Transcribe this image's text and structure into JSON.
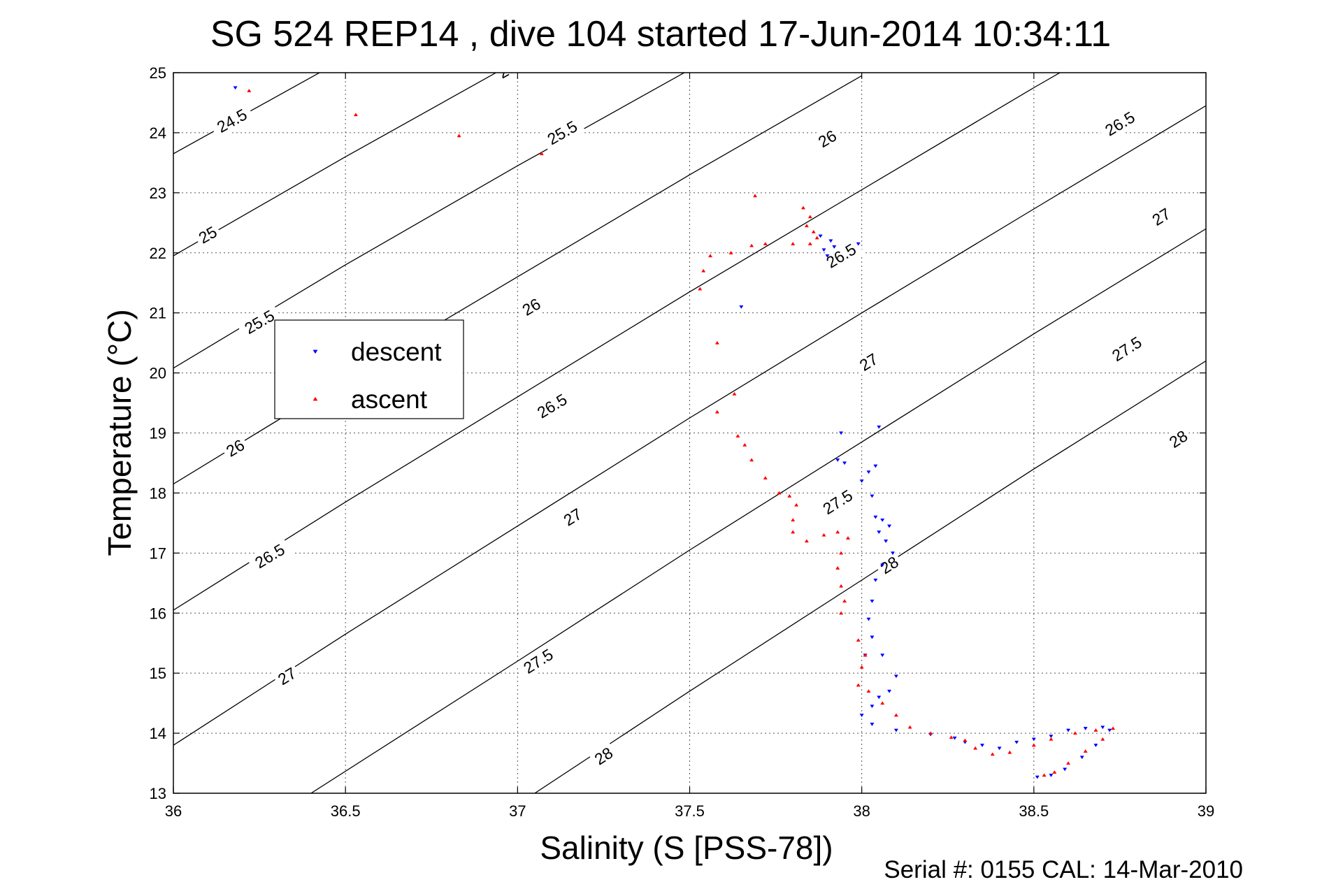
{
  "chart_data": {
    "type": "scatter",
    "title": "SG 524   REP14  , dive 104 started 17-Jun-2014 10:34:11",
    "xlabel": "Salinity (S [PSS-78])",
    "ylabel": "Temperature (°C)",
    "xlim": [
      36,
      39
    ],
    "ylim": [
      13,
      25
    ],
    "x_ticks": [
      "36",
      "36.5",
      "37",
      "37.5",
      "38",
      "38.5",
      "39"
    ],
    "y_ticks": [
      "13",
      "14",
      "15",
      "16",
      "17",
      "18",
      "19",
      "20",
      "21",
      "22",
      "23",
      "24",
      "25"
    ],
    "grid": true,
    "legend_placement": "upper-left",
    "footer": "Serial #: 0155  CAL: 14-Mar-2010",
    "density_contours": [
      {
        "label": "24.5",
        "points": [
          [
            36.0,
            23.65
          ],
          [
            36.5,
            25.24
          ]
        ],
        "label_positions": [
          [
            36.17,
            24.2
          ]
        ]
      },
      {
        "label": "25",
        "points": [
          [
            36.0,
            21.95
          ],
          [
            36.5,
            23.6
          ],
          [
            37.0,
            25.2
          ]
        ],
        "label_positions": [
          [
            36.1,
            22.3
          ],
          [
            36.97,
            25.05
          ]
        ]
      },
      {
        "label": "25.5",
        "points": [
          [
            36.0,
            20.08
          ],
          [
            36.5,
            21.8
          ],
          [
            37.0,
            23.45
          ],
          [
            37.5,
            25.05
          ]
        ],
        "label_positions": [
          [
            36.25,
            20.85
          ],
          [
            37.13,
            24.0
          ]
        ]
      },
      {
        "label": "26",
        "points": [
          [
            36.0,
            18.15
          ],
          [
            36.5,
            19.9
          ],
          [
            37.0,
            21.6
          ],
          [
            37.5,
            23.3
          ],
          [
            38.0,
            24.95
          ]
        ],
        "label_positions": [
          [
            36.18,
            18.75
          ],
          [
            37.04,
            21.1
          ],
          [
            37.9,
            23.9
          ]
        ]
      },
      {
        "label": "26.5",
        "points": [
          [
            36.0,
            16.05
          ],
          [
            36.5,
            17.85
          ],
          [
            37.0,
            19.6
          ],
          [
            37.5,
            21.35
          ],
          [
            38.0,
            23.05
          ],
          [
            38.5,
            24.75
          ],
          [
            39.0,
            26.4
          ]
        ],
        "label_positions": [
          [
            36.28,
            16.95
          ],
          [
            37.1,
            19.45
          ],
          [
            37.94,
            21.95
          ],
          [
            38.75,
            24.15
          ]
        ]
      },
      {
        "label": "27",
        "points": [
          [
            36.0,
            13.8
          ],
          [
            36.5,
            15.65
          ],
          [
            37.0,
            17.45
          ],
          [
            37.5,
            19.25
          ],
          [
            38.0,
            21.0
          ],
          [
            38.5,
            22.73
          ],
          [
            39.0,
            24.45
          ]
        ],
        "label_positions": [
          [
            36.33,
            14.95
          ],
          [
            37.16,
            17.6
          ],
          [
            38.02,
            20.18
          ],
          [
            38.87,
            22.6
          ]
        ]
      },
      {
        "label": "27.5",
        "points": [
          [
            36.4,
            13.0
          ],
          [
            37.0,
            15.2
          ],
          [
            37.5,
            17.05
          ],
          [
            38.0,
            18.85
          ],
          [
            38.5,
            20.65
          ],
          [
            39.0,
            22.4
          ]
        ],
        "label_positions": [
          [
            37.06,
            15.2
          ],
          [
            37.93,
            17.85
          ],
          [
            38.77,
            20.4
          ]
        ]
      },
      {
        "label": "28",
        "points": [
          [
            37.05,
            13.0
          ],
          [
            37.5,
            14.7
          ],
          [
            38.0,
            16.55
          ],
          [
            38.5,
            18.4
          ],
          [
            39.0,
            20.2
          ]
        ],
        "label_positions": [
          [
            37.25,
            13.62
          ],
          [
            38.08,
            16.8
          ],
          [
            38.92,
            18.9
          ]
        ]
      }
    ],
    "series": [
      {
        "name": "descent",
        "color": "#0000ff",
        "marker": "triangle-down",
        "points": [
          [
            36.18,
            24.75
          ],
          [
            37.65,
            21.1
          ],
          [
            37.88,
            22.28
          ],
          [
            37.91,
            22.2
          ],
          [
            37.89,
            22.05
          ],
          [
            37.9,
            21.95
          ],
          [
            37.92,
            22.1
          ],
          [
            37.99,
            22.15
          ],
          [
            37.94,
            19.0
          ],
          [
            37.93,
            18.55
          ],
          [
            37.95,
            18.5
          ],
          [
            38.05,
            19.1
          ],
          [
            38.04,
            18.45
          ],
          [
            38.02,
            18.35
          ],
          [
            38.0,
            18.2
          ],
          [
            38.03,
            17.95
          ],
          [
            38.04,
            17.6
          ],
          [
            38.06,
            17.55
          ],
          [
            38.08,
            17.45
          ],
          [
            38.05,
            17.35
          ],
          [
            38.07,
            17.2
          ],
          [
            38.09,
            17.0
          ],
          [
            38.06,
            16.8
          ],
          [
            38.04,
            16.55
          ],
          [
            38.03,
            16.2
          ],
          [
            38.02,
            15.9
          ],
          [
            38.03,
            15.6
          ],
          [
            38.01,
            15.3
          ],
          [
            38.06,
            15.3
          ],
          [
            38.1,
            14.95
          ],
          [
            38.08,
            14.7
          ],
          [
            38.05,
            14.6
          ],
          [
            38.03,
            14.45
          ],
          [
            38.0,
            14.3
          ],
          [
            38.03,
            14.15
          ],
          [
            38.1,
            14.05
          ],
          [
            38.2,
            13.98
          ],
          [
            38.27,
            13.92
          ],
          [
            38.3,
            13.85
          ],
          [
            38.35,
            13.8
          ],
          [
            38.4,
            13.75
          ],
          [
            38.45,
            13.85
          ],
          [
            38.5,
            13.9
          ],
          [
            38.55,
            13.95
          ],
          [
            38.6,
            14.05
          ],
          [
            38.65,
            14.08
          ],
          [
            38.7,
            14.1
          ],
          [
            38.72,
            14.05
          ],
          [
            38.68,
            13.8
          ],
          [
            38.64,
            13.6
          ],
          [
            38.59,
            13.4
          ],
          [
            38.55,
            13.3
          ],
          [
            38.51,
            13.27
          ]
        ]
      },
      {
        "name": "ascent",
        "color": "#ff0000",
        "marker": "triangle-up",
        "points": [
          [
            36.22,
            24.7
          ],
          [
            36.53,
            24.3
          ],
          [
            36.83,
            23.95
          ],
          [
            37.07,
            23.65
          ],
          [
            37.69,
            22.95
          ],
          [
            37.83,
            22.75
          ],
          [
            37.85,
            22.6
          ],
          [
            37.84,
            22.45
          ],
          [
            37.86,
            22.35
          ],
          [
            37.87,
            22.25
          ],
          [
            37.85,
            22.15
          ],
          [
            37.8,
            22.15
          ],
          [
            37.72,
            22.15
          ],
          [
            37.68,
            22.12
          ],
          [
            37.62,
            22.0
          ],
          [
            37.56,
            21.95
          ],
          [
            37.54,
            21.7
          ],
          [
            37.53,
            21.4
          ],
          [
            37.58,
            20.5
          ],
          [
            37.63,
            19.65
          ],
          [
            37.58,
            19.35
          ],
          [
            37.64,
            18.95
          ],
          [
            37.66,
            18.8
          ],
          [
            37.68,
            18.55
          ],
          [
            37.72,
            18.25
          ],
          [
            37.76,
            18.0
          ],
          [
            37.79,
            17.95
          ],
          [
            37.81,
            17.8
          ],
          [
            37.8,
            17.55
          ],
          [
            37.8,
            17.35
          ],
          [
            37.84,
            17.2
          ],
          [
            37.89,
            17.3
          ],
          [
            37.93,
            17.35
          ],
          [
            37.96,
            17.25
          ],
          [
            37.94,
            17.0
          ],
          [
            37.93,
            16.75
          ],
          [
            37.94,
            16.45
          ],
          [
            37.95,
            16.2
          ],
          [
            37.94,
            16.0
          ],
          [
            37.99,
            15.55
          ],
          [
            38.01,
            15.3
          ],
          [
            38.0,
            15.1
          ],
          [
            37.99,
            14.8
          ],
          [
            38.02,
            14.7
          ],
          [
            38.06,
            14.5
          ],
          [
            38.1,
            14.3
          ],
          [
            38.14,
            14.1
          ],
          [
            38.2,
            14.0
          ],
          [
            38.26,
            13.93
          ],
          [
            38.3,
            13.88
          ],
          [
            38.33,
            13.75
          ],
          [
            38.38,
            13.65
          ],
          [
            38.43,
            13.68
          ],
          [
            38.5,
            13.8
          ],
          [
            38.55,
            13.9
          ],
          [
            38.62,
            14.0
          ],
          [
            38.68,
            14.05
          ],
          [
            38.73,
            14.08
          ],
          [
            38.7,
            13.9
          ],
          [
            38.65,
            13.7
          ],
          [
            38.6,
            13.5
          ],
          [
            38.56,
            13.35
          ],
          [
            38.53,
            13.3
          ]
        ]
      }
    ]
  }
}
